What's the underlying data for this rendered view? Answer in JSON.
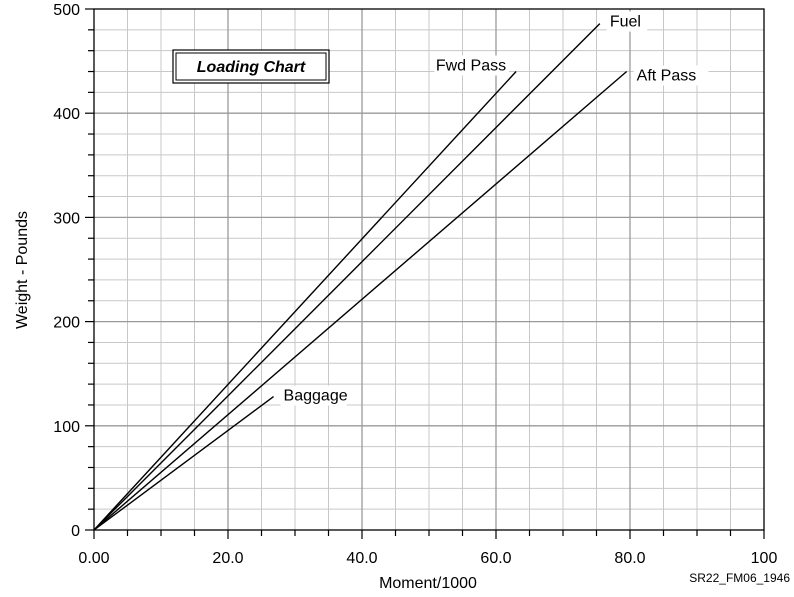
{
  "chart_data": {
    "type": "line",
    "title": "Loading Chart",
    "xlabel": "Moment/1000",
    "ylabel": "Weight - Pounds",
    "xlim": [
      0,
      100
    ],
    "ylim": [
      0,
      500
    ],
    "grid": true,
    "x_ticks": [
      "0.00",
      "20.0",
      "40.0",
      "60.0",
      "80.0",
      "100"
    ],
    "y_ticks": [
      "0",
      "100",
      "200",
      "300",
      "400",
      "500"
    ],
    "series": [
      {
        "name": "Fwd Pass",
        "x": [
          0,
          63.0
        ],
        "y": [
          0,
          440
        ]
      },
      {
        "name": "Fuel",
        "x": [
          0,
          75.5
        ],
        "y": [
          0,
          486
        ]
      },
      {
        "name": "Aft Pass",
        "x": [
          0,
          79.5
        ],
        "y": [
          0,
          440
        ]
      },
      {
        "name": "Baggage",
        "x": [
          0,
          26.8
        ],
        "y": [
          0,
          128
        ]
      }
    ]
  },
  "figure_id": "SR22_FM06_1946"
}
